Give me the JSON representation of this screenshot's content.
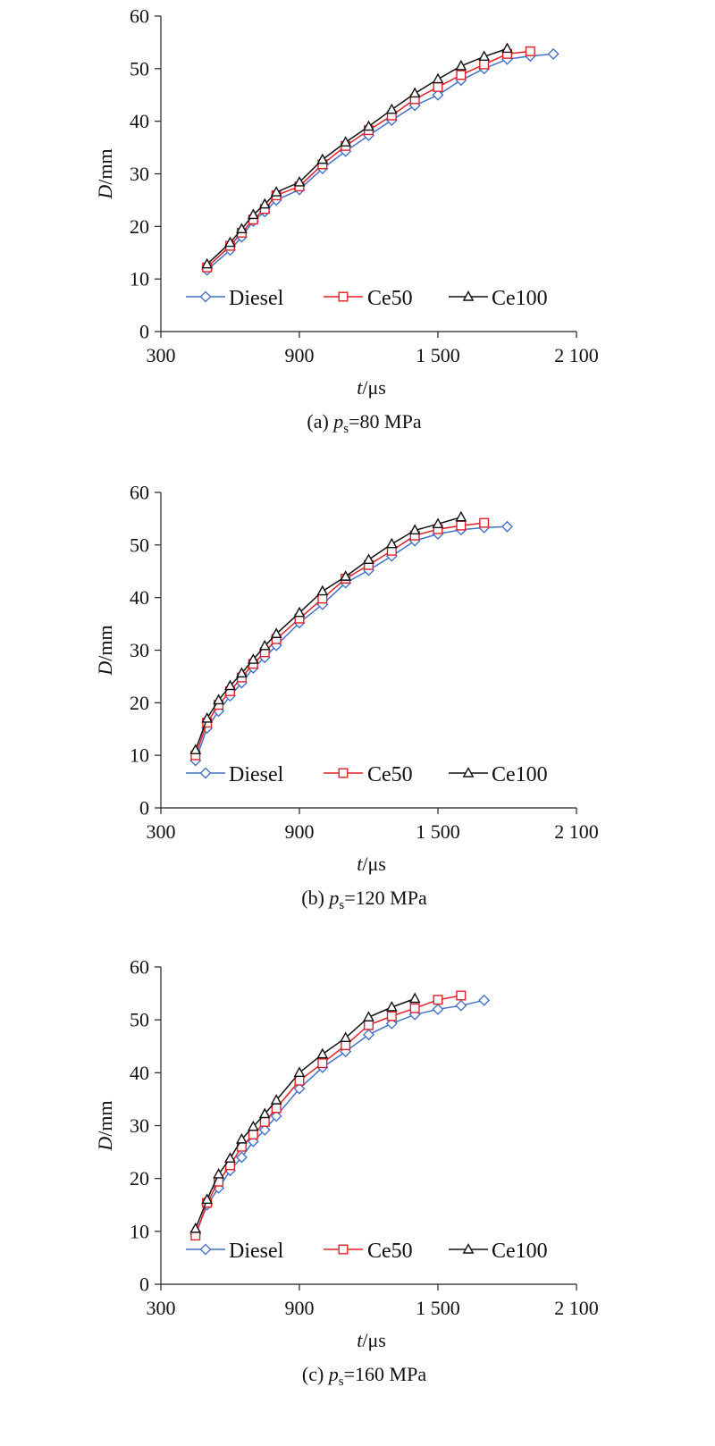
{
  "colors": {
    "Diesel": "#4472c4",
    "Ce50": "#e0202a",
    "Ce100": "#111111",
    "axis": "#222222"
  },
  "chart_data": [
    {
      "type": "line",
      "caption_prefix": "(a) ",
      "caption_p": "p",
      "caption_sub": "s",
      "caption_suffix": "=80 MPa",
      "xlabel_italic": "t",
      "xlabel_unit": "/μs",
      "ylabel_italic": "D",
      "ylabel_unit": "/mm",
      "xlim": [
        300,
        2100
      ],
      "ylim": [
        0,
        60
      ],
      "xticks": [
        300,
        900,
        1500,
        2100
      ],
      "xtick_labels": [
        "300",
        "900",
        "1 500",
        "2 100"
      ],
      "yticks": [
        0,
        10,
        20,
        30,
        40,
        50,
        60
      ],
      "ytick_labels": [
        "0",
        "10",
        "20",
        "30",
        "40",
        "50",
        "60"
      ],
      "legend": "bottom-left",
      "grid": false,
      "series": [
        {
          "name": "Diesel",
          "marker": "diamond",
          "x": [
            500,
            600,
            650,
            700,
            750,
            800,
            900,
            1000,
            1100,
            1200,
            1300,
            1400,
            1500,
            1600,
            1700,
            1800,
            1900,
            2000
          ],
          "y": [
            11.7,
            15.5,
            18,
            21,
            22.8,
            25,
            27,
            31,
            34.3,
            37.3,
            40.2,
            43,
            45,
            47.8,
            50,
            51.8,
            52.4,
            52.8
          ]
        },
        {
          "name": "Ce50",
          "marker": "square",
          "x": [
            500,
            600,
            650,
            700,
            750,
            800,
            900,
            1000,
            1100,
            1200,
            1300,
            1400,
            1500,
            1600,
            1700,
            1800,
            1900
          ],
          "y": [
            12.2,
            16.3,
            18.8,
            21.3,
            23.3,
            25.9,
            27.6,
            31.8,
            35.3,
            38.3,
            41.1,
            44.2,
            46.5,
            48.8,
            50.8,
            52.8,
            53.3
          ]
        },
        {
          "name": "Ce100",
          "marker": "triangle",
          "x": [
            500,
            600,
            650,
            700,
            750,
            800,
            900,
            1000,
            1100,
            1200,
            1300,
            1400,
            1500,
            1600,
            1700,
            1800
          ],
          "y": [
            12.8,
            16.9,
            19.5,
            22.2,
            24.2,
            26.5,
            28.4,
            32.7,
            36,
            39,
            42.2,
            45.3,
            48,
            50.5,
            52.3,
            53.8
          ]
        }
      ]
    },
    {
      "type": "line",
      "caption_prefix": "(b) ",
      "caption_p": "p",
      "caption_sub": "s",
      "caption_suffix": "=120 MPa",
      "xlabel_italic": "t",
      "xlabel_unit": "/μs",
      "ylabel_italic": "D",
      "ylabel_unit": "/mm",
      "xlim": [
        300,
        2100
      ],
      "ylim": [
        0,
        60
      ],
      "xticks": [
        300,
        900,
        1500,
        2100
      ],
      "xtick_labels": [
        "300",
        "900",
        "1 500",
        "2 100"
      ],
      "yticks": [
        0,
        10,
        20,
        30,
        40,
        50,
        60
      ],
      "ytick_labels": [
        "0",
        "10",
        "20",
        "30",
        "40",
        "50",
        "60"
      ],
      "legend": "bottom-left",
      "grid": false,
      "series": [
        {
          "name": "Diesel",
          "marker": "diamond",
          "x": [
            450,
            500,
            550,
            600,
            650,
            700,
            750,
            800,
            900,
            1000,
            1100,
            1200,
            1300,
            1400,
            1500,
            1600,
            1700,
            1800
          ],
          "y": [
            9,
            15.2,
            18.4,
            21.3,
            23.8,
            26.6,
            28.6,
            30.9,
            35.2,
            38.7,
            42.8,
            45.2,
            47.9,
            50.8,
            52.1,
            52.9,
            53.3,
            53.5
          ]
        },
        {
          "name": "Ce50",
          "marker": "square",
          "x": [
            450,
            500,
            550,
            600,
            650,
            700,
            750,
            800,
            900,
            1000,
            1100,
            1200,
            1300,
            1400,
            1500,
            1600,
            1700
          ],
          "y": [
            10,
            16.2,
            19.6,
            22.2,
            24.8,
            27.4,
            29.6,
            32.1,
            36,
            39.8,
            43.6,
            46.2,
            48.9,
            51.8,
            53,
            53.7,
            54.2
          ]
        },
        {
          "name": "Ce100",
          "marker": "triangle",
          "x": [
            450,
            500,
            550,
            600,
            650,
            700,
            750,
            800,
            900,
            1000,
            1100,
            1200,
            1300,
            1400,
            1500,
            1600
          ],
          "y": [
            11,
            17,
            20.5,
            23.2,
            25.6,
            28.2,
            30.8,
            33.1,
            37.1,
            41.2,
            44,
            47.2,
            50.2,
            52.8,
            54,
            55.3
          ]
        }
      ]
    },
    {
      "type": "line",
      "caption_prefix": "(c) ",
      "caption_p": "p",
      "caption_sub": "s",
      "caption_suffix": "=160 MPa",
      "xlabel_italic": "t",
      "xlabel_unit": "/μs",
      "ylabel_italic": "D",
      "ylabel_unit": "/mm",
      "xlim": [
        300,
        2100
      ],
      "ylim": [
        0,
        60
      ],
      "xticks": [
        300,
        900,
        1500,
        2100
      ],
      "xtick_labels": [
        "300",
        "900",
        "1 500",
        "2 100"
      ],
      "yticks": [
        0,
        10,
        20,
        30,
        40,
        50,
        60
      ],
      "ytick_labels": [
        "0",
        "10",
        "20",
        "30",
        "40",
        "50",
        "60"
      ],
      "legend": "bottom-left",
      "grid": false,
      "series": [
        {
          "name": "Diesel",
          "marker": "diamond",
          "x": [
            450,
            500,
            550,
            600,
            650,
            700,
            750,
            800,
            900,
            1000,
            1100,
            1200,
            1300,
            1400,
            1500,
            1600,
            1700
          ],
          "y": [
            9.5,
            15,
            18.2,
            21.5,
            24,
            27,
            29.2,
            31.8,
            37,
            41,
            44,
            47.2,
            49.3,
            51,
            52,
            52.7,
            53.7
          ]
        },
        {
          "name": "Ce50",
          "marker": "square",
          "x": [
            450,
            500,
            550,
            600,
            650,
            700,
            750,
            800,
            900,
            1000,
            1100,
            1200,
            1300,
            1400,
            1500,
            1600
          ],
          "y": [
            9.2,
            15.4,
            19.4,
            22.5,
            26,
            28.3,
            30.7,
            33.3,
            38.5,
            41.8,
            45.2,
            49,
            50.7,
            52.2,
            53.8,
            54.6
          ]
        },
        {
          "name": "Ce100",
          "marker": "triangle",
          "x": [
            450,
            500,
            550,
            600,
            650,
            700,
            750,
            800,
            900,
            1000,
            1100,
            1200,
            1300,
            1400
          ],
          "y": [
            10.5,
            16,
            20.8,
            23.8,
            27.4,
            29.8,
            32.2,
            34.8,
            40,
            43.5,
            46.6,
            50.5,
            52.4,
            54
          ]
        }
      ]
    }
  ]
}
